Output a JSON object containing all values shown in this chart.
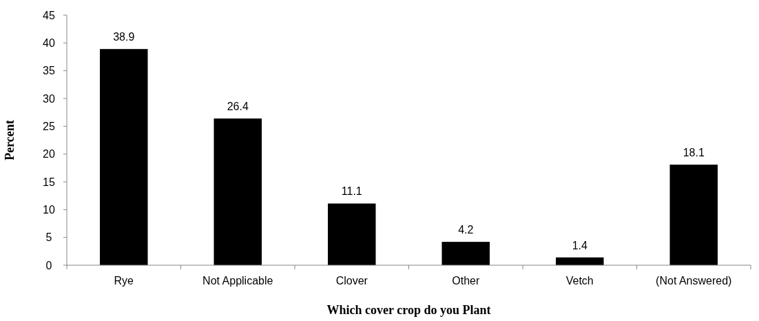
{
  "chart_data": {
    "type": "bar",
    "xlabel": "Which cover crop do you Plant",
    "ylabel": "Percent",
    "categories": [
      "Rye",
      "Not Applicable",
      "Clover",
      "Other",
      "Vetch",
      "(Not Answered)"
    ],
    "values": [
      38.9,
      26.4,
      11.1,
      4.2,
      1.4,
      18.1
    ],
    "color": "#000000",
    "ylim": [
      0,
      45
    ],
    "yticks": [
      0,
      5,
      10,
      15,
      20,
      25,
      30,
      35,
      40,
      45
    ],
    "grid": false,
    "data_labels": true
  }
}
